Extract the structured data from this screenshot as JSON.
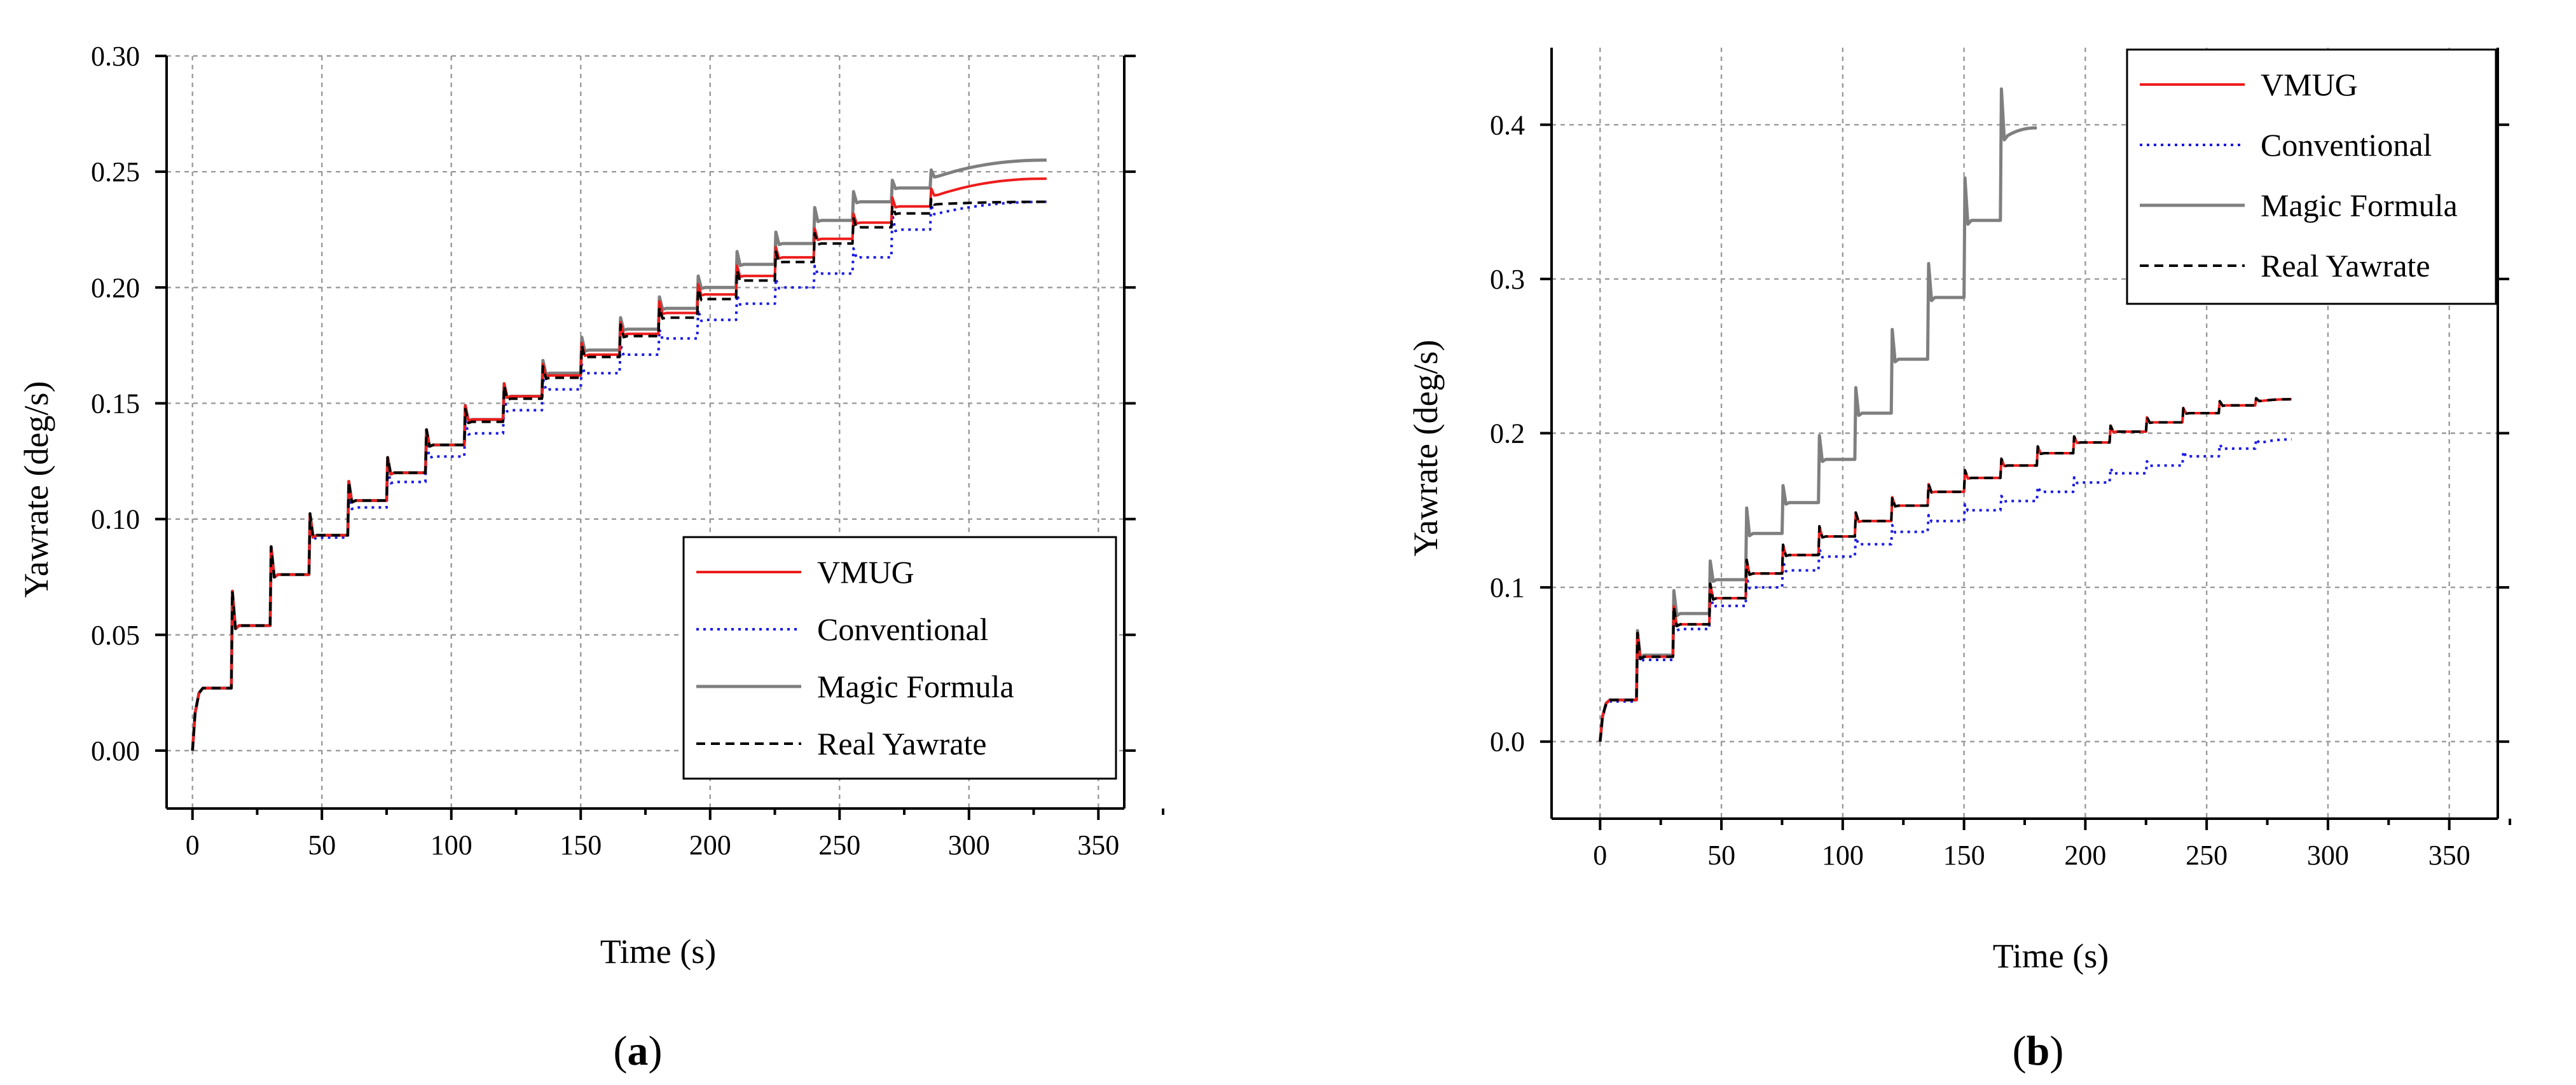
{
  "figure": {
    "panels": [
      {
        "label_open": "(",
        "label_letter": "a",
        "label_close": ")"
      },
      {
        "label_open": "(",
        "label_letter": "b",
        "label_close": ")"
      }
    ]
  },
  "colors": {
    "vmug": "#ee1c1c",
    "conventional": "#1a1ae6",
    "magic_formula": "#7f7f7f",
    "real_yawrate": "#000000"
  },
  "chart_data": [
    {
      "type": "line",
      "panel": "a",
      "title": "",
      "xlabel": "Time (s)",
      "ylabel": "Yawrate (deg/s)",
      "xlim": [
        -10,
        360
      ],
      "ylim": [
        -0.025,
        0.3
      ],
      "xticks": [
        "0",
        "50",
        "100",
        "150",
        "200",
        "250",
        "300",
        "350"
      ],
      "xtick_values": [
        0,
        50,
        100,
        150,
        200,
        250,
        300,
        350
      ],
      "yticks": [
        "0.00",
        "0.05",
        "0.10",
        "0.15",
        "0.20",
        "0.25",
        "0.30"
      ],
      "ytick_values": [
        0.0,
        0.05,
        0.1,
        0.15,
        0.2,
        0.25,
        0.3
      ],
      "grid": true,
      "legend_position": "bottom-right",
      "legend": [
        "VMUG",
        "Conventional",
        "Magic Formula",
        "Real Yawrate"
      ],
      "series": [
        {
          "name": "VMUG",
          "key": "vmug",
          "step_times": [
            0,
            15,
            30,
            45,
            60,
            75,
            90,
            105,
            120,
            135,
            150,
            165,
            180,
            195,
            210,
            225,
            240,
            255,
            270,
            285
          ],
          "levels": [
            0.027,
            0.054,
            0.076,
            0.093,
            0.108,
            0.12,
            0.132,
            0.143,
            0.153,
            0.162,
            0.171,
            0.18,
            0.189,
            0.197,
            0.205,
            0.213,
            0.221,
            0.228,
            0.235,
            0.24
          ],
          "final_value": 0.247,
          "end_time": 330
        },
        {
          "name": "Conventional",
          "key": "conventional",
          "step_times": [
            0,
            15,
            30,
            45,
            60,
            75,
            90,
            105,
            120,
            135,
            150,
            165,
            180,
            195,
            210,
            225,
            240,
            255,
            270,
            285
          ],
          "levels": [
            0.027,
            0.054,
            0.076,
            0.092,
            0.105,
            0.116,
            0.127,
            0.137,
            0.147,
            0.156,
            0.163,
            0.171,
            0.178,
            0.186,
            0.193,
            0.2,
            0.206,
            0.213,
            0.225,
            0.232
          ],
          "final_value": 0.237,
          "end_time": 330
        },
        {
          "name": "Magic Formula",
          "key": "magic_formula",
          "step_times": [
            0,
            15,
            30,
            45,
            60,
            75,
            90,
            105,
            120,
            135,
            150,
            165,
            180,
            195,
            210,
            225,
            240,
            255,
            270,
            285
          ],
          "levels": [
            0.027,
            0.054,
            0.076,
            0.093,
            0.108,
            0.12,
            0.132,
            0.143,
            0.153,
            0.163,
            0.173,
            0.182,
            0.191,
            0.2,
            0.21,
            0.219,
            0.229,
            0.237,
            0.243,
            0.248
          ],
          "final_value": 0.255,
          "end_time": 330
        },
        {
          "name": "Real Yawrate",
          "key": "real_yawrate",
          "step_times": [
            0,
            15,
            30,
            45,
            60,
            75,
            90,
            105,
            120,
            135,
            150,
            165,
            180,
            195,
            210,
            225,
            240,
            255,
            270,
            285
          ],
          "levels": [
            0.027,
            0.054,
            0.076,
            0.093,
            0.108,
            0.12,
            0.132,
            0.142,
            0.152,
            0.161,
            0.17,
            0.179,
            0.187,
            0.195,
            0.203,
            0.211,
            0.219,
            0.226,
            0.232,
            0.236
          ],
          "final_value": 0.237,
          "end_time": 330
        }
      ]
    },
    {
      "type": "line",
      "panel": "b",
      "title": "",
      "xlabel": "Time (s)",
      "ylabel": "Yawrate (deg/s)",
      "xlim": [
        -20,
        370
      ],
      "ylim": [
        -0.05,
        0.45
      ],
      "xticks": [
        "0",
        "50",
        "100",
        "150",
        "200",
        "250",
        "300",
        "350"
      ],
      "xtick_values": [
        0,
        50,
        100,
        150,
        200,
        250,
        300,
        350
      ],
      "yticks": [
        "0.0",
        "0.1",
        "0.2",
        "0.3",
        "0.4"
      ],
      "ytick_values": [
        0.0,
        0.1,
        0.2,
        0.3,
        0.4
      ],
      "grid": true,
      "legend_position": "top-right",
      "legend": [
        "VMUG",
        "Conventional",
        "Magic Formula",
        "Real Yawrate"
      ],
      "series": [
        {
          "name": "VMUG",
          "key": "vmug",
          "step_times": [
            0,
            15,
            30,
            45,
            60,
            75,
            90,
            105,
            120,
            135,
            150,
            165,
            180,
            195,
            210,
            225,
            240,
            255,
            270
          ],
          "levels": [
            0.027,
            0.055,
            0.076,
            0.093,
            0.109,
            0.121,
            0.133,
            0.143,
            0.153,
            0.162,
            0.171,
            0.179,
            0.187,
            0.194,
            0.201,
            0.207,
            0.213,
            0.218,
            0.221
          ],
          "final_value": 0.222,
          "end_time": 285
        },
        {
          "name": "Conventional",
          "key": "conventional",
          "step_times": [
            0,
            15,
            30,
            45,
            60,
            75,
            90,
            105,
            120,
            135,
            150,
            165,
            180,
            195,
            210,
            225,
            240,
            255,
            270
          ],
          "levels": [
            0.026,
            0.053,
            0.073,
            0.088,
            0.1,
            0.111,
            0.12,
            0.128,
            0.136,
            0.143,
            0.15,
            0.156,
            0.162,
            0.168,
            0.174,
            0.179,
            0.185,
            0.19,
            0.194
          ],
          "final_value": 0.196,
          "end_time": 285
        },
        {
          "name": "Magic Formula",
          "key": "magic_formula",
          "step_times": [
            0,
            15,
            30,
            45,
            60,
            75,
            90,
            105,
            120,
            135,
            150,
            165
          ],
          "levels": [
            0.027,
            0.056,
            0.083,
            0.105,
            0.135,
            0.155,
            0.183,
            0.213,
            0.248,
            0.288,
            0.338,
            0.393
          ],
          "final_value": 0.398,
          "end_time": 180
        },
        {
          "name": "Real Yawrate",
          "key": "real_yawrate",
          "step_times": [
            0,
            15,
            30,
            45,
            60,
            75,
            90,
            105,
            120,
            135,
            150,
            165,
            180,
            195,
            210,
            225,
            240,
            255,
            270
          ],
          "levels": [
            0.027,
            0.055,
            0.076,
            0.093,
            0.109,
            0.121,
            0.133,
            0.143,
            0.153,
            0.162,
            0.171,
            0.179,
            0.187,
            0.194,
            0.201,
            0.207,
            0.213,
            0.218,
            0.221
          ],
          "final_value": 0.222,
          "end_time": 285
        }
      ]
    }
  ]
}
